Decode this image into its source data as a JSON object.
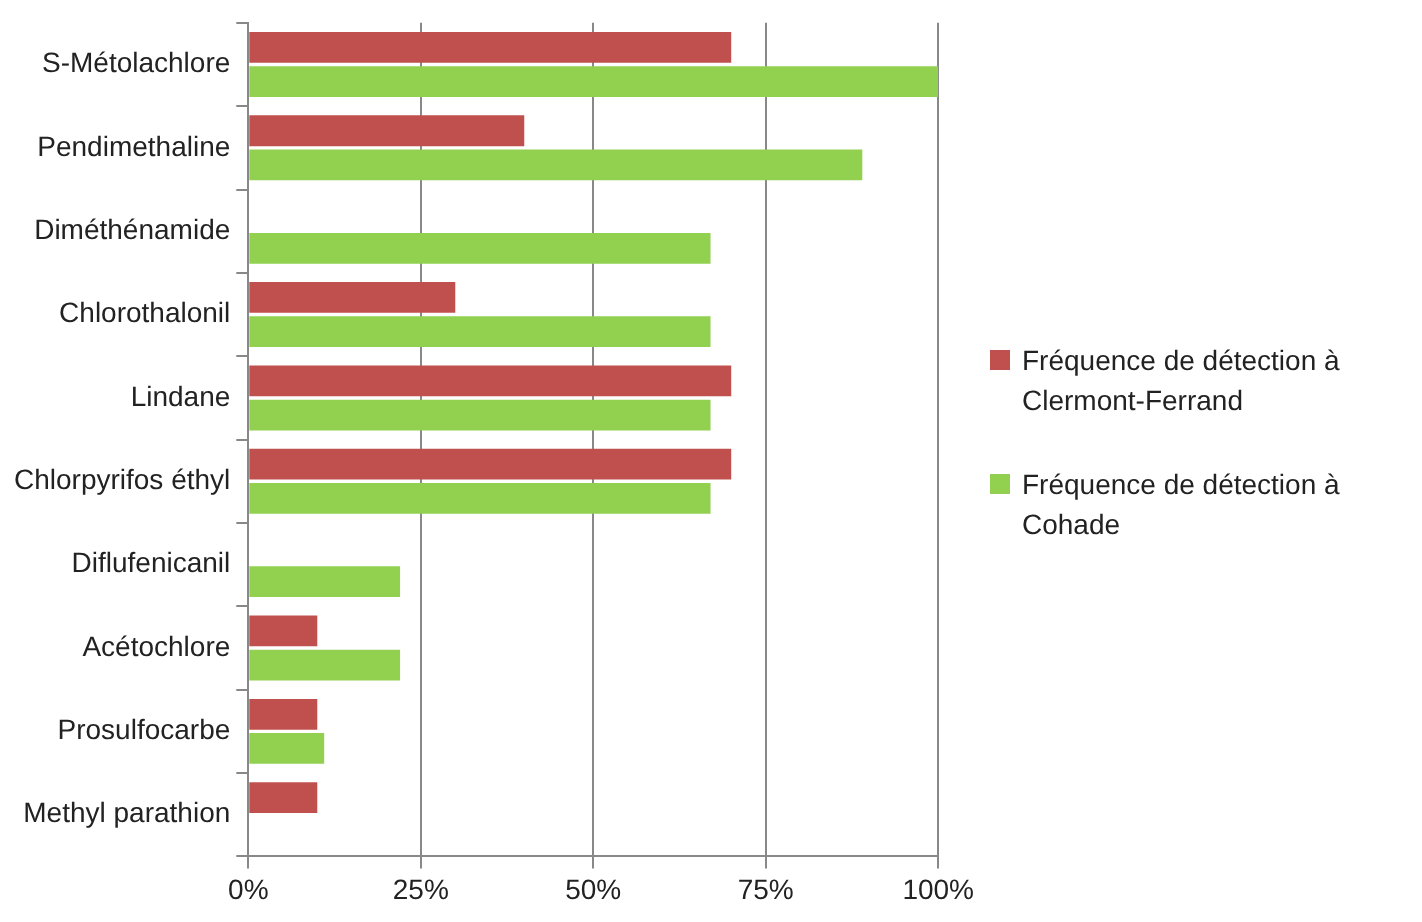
{
  "chart_data": {
    "type": "bar",
    "orientation": "horizontal",
    "categories": [
      "S-Métolachlore",
      "Pendimethaline",
      "Diméthénamide",
      "Chlorothalonil",
      "Lindane",
      "Chlorpyrifos éthyl",
      "Diflufenicanil",
      "Acétochlore",
      "Prosulfocarbe",
      "Methyl parathion"
    ],
    "series": [
      {
        "name": "Fréquence de détection à Clermont-Ferrand",
        "color": "#c0504d",
        "values": [
          70,
          40,
          null,
          30,
          70,
          70,
          null,
          10,
          10,
          10
        ]
      },
      {
        "name": "Fréquence de détection à Cohade",
        "color": "#92d050",
        "values": [
          100,
          89,
          67,
          67,
          67,
          67,
          22,
          22,
          11,
          null
        ]
      }
    ],
    "xlim": [
      0,
      100
    ],
    "xticks": [
      {
        "value": 0,
        "label": "0%"
      },
      {
        "value": 25,
        "label": "25%"
      },
      {
        "value": 50,
        "label": "50%"
      },
      {
        "value": 75,
        "label": "75%"
      },
      {
        "value": 100,
        "label": "100%"
      }
    ],
    "grid": "x",
    "legend": "right"
  }
}
